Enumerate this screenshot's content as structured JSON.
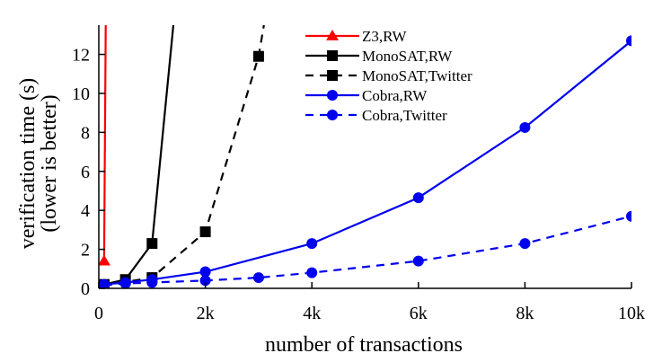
{
  "chart_data": {
    "type": "line",
    "xlabel": "number of transactions",
    "ylabel_lines": [
      "verification time (s)",
      "(lower is better)"
    ],
    "xlim": [
      0,
      10000
    ],
    "ylim": [
      0,
      13.5
    ],
    "x_ticks": [
      {
        "value": 0,
        "label": "0"
      },
      {
        "value": 2000,
        "label": "2k"
      },
      {
        "value": 4000,
        "label": "4k"
      },
      {
        "value": 6000,
        "label": "6k"
      },
      {
        "value": 8000,
        "label": "8k"
      },
      {
        "value": 10000,
        "label": "10k"
      }
    ],
    "y_ticks": [
      {
        "value": 0,
        "label": "0"
      },
      {
        "value": 2,
        "label": "2"
      },
      {
        "value": 4,
        "label": "4"
      },
      {
        "value": 6,
        "label": "6"
      },
      {
        "value": 8,
        "label": "8"
      },
      {
        "value": 10,
        "label": "10"
      },
      {
        "value": 12,
        "label": "12"
      }
    ],
    "grid": false,
    "legend_position": "top-right",
    "series": [
      {
        "name": "Z3,RW",
        "color": "#ff0000",
        "dash": "solid",
        "marker": "triangle",
        "points": [
          {
            "x": 100,
            "y": 1.4
          }
        ],
        "line": [
          [
            100,
            1.4
          ],
          [
            130,
            13.5
          ]
        ]
      },
      {
        "name": "MonoSAT,RW",
        "color": "#000000",
        "dash": "solid",
        "marker": "square",
        "points": [
          {
            "x": 100,
            "y": 0.2
          },
          {
            "x": 500,
            "y": 0.45
          },
          {
            "x": 1000,
            "y": 2.3
          }
        ],
        "line": [
          [
            100,
            0.2
          ],
          [
            500,
            0.45
          ],
          [
            1000,
            2.3
          ],
          [
            1400,
            13.5
          ]
        ]
      },
      {
        "name": "MonoSAT,Twitter",
        "color": "#000000",
        "dash": "dashed",
        "marker": "square",
        "points": [
          {
            "x": 100,
            "y": 0.15
          },
          {
            "x": 1000,
            "y": 0.55
          },
          {
            "x": 2000,
            "y": 2.9
          },
          {
            "x": 3000,
            "y": 11.9
          }
        ],
        "line": [
          [
            100,
            0.15
          ],
          [
            1000,
            0.55
          ],
          [
            2000,
            2.9
          ],
          [
            3000,
            11.9
          ],
          [
            3100,
            13.5
          ]
        ]
      },
      {
        "name": "Cobra,RW",
        "color": "#0000ee",
        "dash": "solid",
        "marker": "circle",
        "points": [
          {
            "x": 100,
            "y": 0.2
          },
          {
            "x": 500,
            "y": 0.3
          },
          {
            "x": 1000,
            "y": 0.45
          },
          {
            "x": 2000,
            "y": 0.85
          },
          {
            "x": 4000,
            "y": 2.3
          },
          {
            "x": 6000,
            "y": 4.65
          },
          {
            "x": 8000,
            "y": 8.25
          },
          {
            "x": 10000,
            "y": 12.7
          }
        ],
        "line": [
          [
            100,
            0.2
          ],
          [
            500,
            0.3
          ],
          [
            1000,
            0.45
          ],
          [
            2000,
            0.85
          ],
          [
            4000,
            2.3
          ],
          [
            6000,
            4.65
          ],
          [
            8000,
            8.25
          ],
          [
            10000,
            12.7
          ]
        ]
      },
      {
        "name": "Cobra,Twitter",
        "color": "#0000ee",
        "dash": "dashed",
        "marker": "circle",
        "points": [
          {
            "x": 100,
            "y": 0.15
          },
          {
            "x": 500,
            "y": 0.25
          },
          {
            "x": 1000,
            "y": 0.3
          },
          {
            "x": 2000,
            "y": 0.4
          },
          {
            "x": 3000,
            "y": 0.55
          },
          {
            "x": 4000,
            "y": 0.8
          },
          {
            "x": 6000,
            "y": 1.4
          },
          {
            "x": 8000,
            "y": 2.3
          },
          {
            "x": 10000,
            "y": 3.7
          }
        ],
        "line": [
          [
            100,
            0.15
          ],
          [
            500,
            0.25
          ],
          [
            1000,
            0.3
          ],
          [
            2000,
            0.4
          ],
          [
            3000,
            0.55
          ],
          [
            4000,
            0.8
          ],
          [
            6000,
            1.4
          ],
          [
            8000,
            2.3
          ],
          [
            10000,
            3.7
          ]
        ]
      }
    ]
  }
}
